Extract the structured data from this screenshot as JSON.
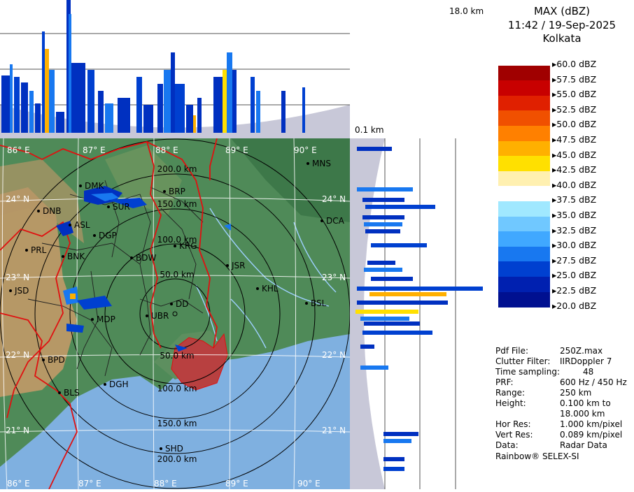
{
  "header": {
    "product": "MAX (dBZ)",
    "datetime": "11:42 / 19-Sep-2025",
    "station": "Kolkata"
  },
  "height_labels": {
    "top": "18.0 km",
    "bottom": "0.1 km"
  },
  "legend": [
    {
      "label": "60.0 dBZ",
      "color": "#ffffff"
    },
    {
      "label": "57.5 dBZ",
      "color": "#a00000"
    },
    {
      "label": "55.0 dBZ",
      "color": "#c80000"
    },
    {
      "label": "52.5 dBZ",
      "color": "#e02000"
    },
    {
      "label": "50.0 dBZ",
      "color": "#f05000"
    },
    {
      "label": "47.5 dBZ",
      "color": "#ff8000"
    },
    {
      "label": "45.0 dBZ",
      "color": "#ffb000"
    },
    {
      "label": "42.5 dBZ",
      "color": "#ffe000"
    },
    {
      "label": "40.0 dBZ",
      "color": "#fff0b0"
    },
    {
      "label": "37.5 dBZ",
      "color": "#ffffff"
    },
    {
      "label": "35.0 dBZ",
      "color": "#a0e8ff"
    },
    {
      "label": "32.5 dBZ",
      "color": "#70c8ff"
    },
    {
      "label": "30.0 dBZ",
      "color": "#40a8ff"
    },
    {
      "label": "27.5 dBZ",
      "color": "#1878f0"
    },
    {
      "label": "25.0 dBZ",
      "color": "#0040d0"
    },
    {
      "label": "22.5 dBZ",
      "color": "#0020b0"
    },
    {
      "label": "20.0 dBZ",
      "color": "#001090"
    }
  ],
  "info": [
    {
      "key": "Pdf File:",
      "value": "250Z.max"
    },
    {
      "key": "Clutter Filter:",
      "value": "IIRDoppler 7"
    },
    {
      "key": "Time sampling:",
      "value": "48"
    },
    {
      "key": "PRF:",
      "value": "600 Hz / 450 Hz"
    },
    {
      "key": "Range:",
      "value": "250 km"
    },
    {
      "key": "Height:",
      "value": "0.100 km to"
    },
    {
      "key": "",
      "value": "18.000 km"
    },
    {
      "key": "Hor Res:",
      "value": "1.000 km/pixel"
    },
    {
      "key": "Vert Res:",
      "value": "0.089 km/pixel"
    },
    {
      "key": "Data:",
      "value": "Radar Data"
    }
  ],
  "footer": "Rainbow® SELEX-SI",
  "map": {
    "lon_labels": [
      "86° E",
      "87° E",
      "88° E",
      "89° E",
      "90° E"
    ],
    "lat_labels": [
      "24° N",
      "23° N",
      "22° N",
      "21° N"
    ],
    "range_labels": [
      "50.0 km",
      "100.0 km",
      "150.0 km",
      "200.0 km"
    ],
    "stations": [
      "MNS",
      "BRP",
      "DMK",
      "SUR",
      "DNB",
      "ASL",
      "DGP",
      "DCA",
      "KRG",
      "PRL",
      "BNK",
      "BDW",
      "JSR",
      "JSD",
      "KHL",
      "BSL",
      "DD",
      "MDP",
      "UBR",
      "BPD",
      "DGH",
      "BLS",
      "SHD"
    ],
    "colors": {
      "land_green": "#4a8a55",
      "land_dry": "#c09060",
      "sea": "#7fb0e0",
      "border": "#e01010",
      "district": "#202020",
      "rivers": "#9ed0ff"
    }
  }
}
